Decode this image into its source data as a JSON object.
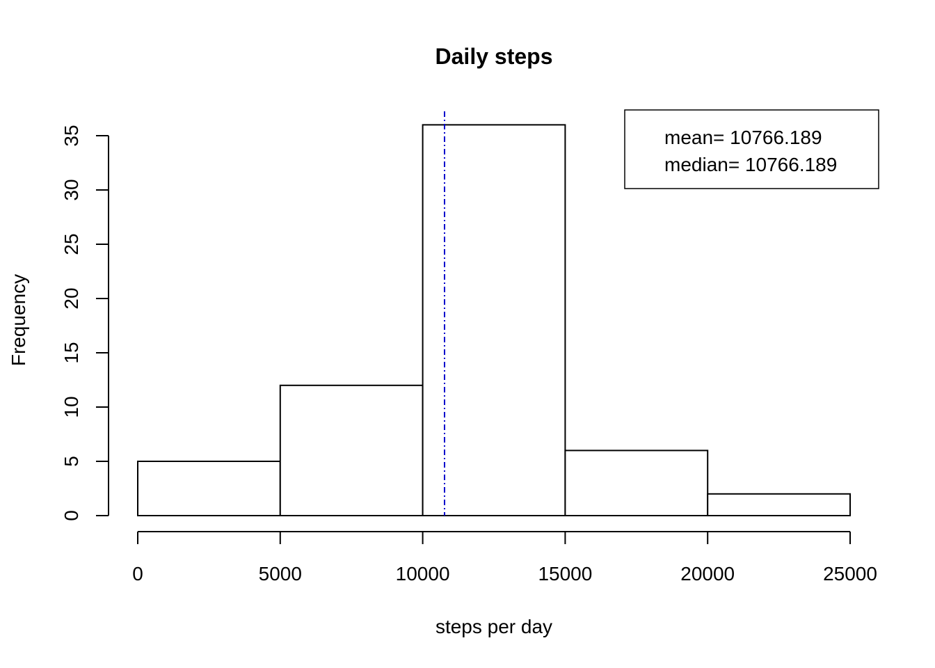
{
  "chart_data": {
    "type": "bar",
    "subtype": "histogram",
    "title": "Daily steps",
    "xlabel": "steps per day",
    "ylabel": "Frequency",
    "bins": [
      {
        "from": 0,
        "to": 5000,
        "count": 5
      },
      {
        "from": 5000,
        "to": 10000,
        "count": 12
      },
      {
        "from": 10000,
        "to": 15000,
        "count": 36
      },
      {
        "from": 15000,
        "to": 20000,
        "count": 6
      },
      {
        "from": 20000,
        "to": 25000,
        "count": 2
      }
    ],
    "xlim": [
      0,
      25000
    ],
    "ylim": [
      0,
      36
    ],
    "x_ticks": [
      0,
      5000,
      10000,
      15000,
      20000,
      25000
    ],
    "x_tick_labels": [
      "0",
      "5000",
      "10000",
      "15000",
      "20000",
      "25000"
    ],
    "y_ticks": [
      0,
      5,
      10,
      15,
      20,
      25,
      30,
      35
    ],
    "y_tick_labels": [
      "0",
      "5",
      "10",
      "15",
      "20",
      "25",
      "30",
      "35"
    ],
    "reference_line": {
      "x": 10766.189,
      "color": "#0000cc",
      "style": "dot-dash"
    },
    "legend": {
      "position": "top-right",
      "entries": [
        "mean= 10766.189",
        "median= 10766.189"
      ]
    },
    "grid": false,
    "colors": {
      "bar_fill": "#ffffff",
      "bar_stroke": "#000000",
      "mean_line": "#0000cc"
    }
  }
}
